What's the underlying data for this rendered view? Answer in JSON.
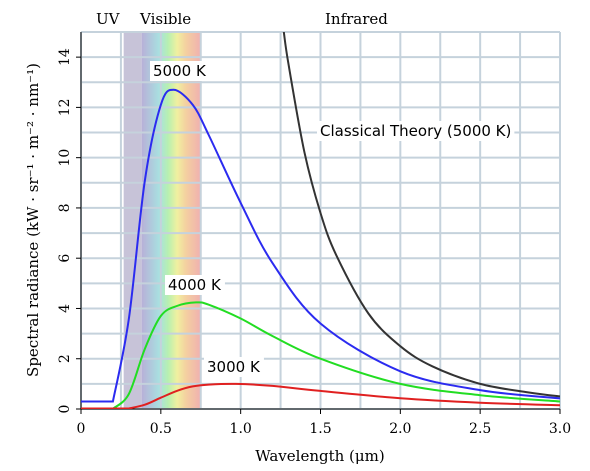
{
  "chart_data": {
    "type": "line",
    "xlabel": "Wavelength (μm)",
    "ylabel": "Spectral radiance (kW · sr⁻¹ · m⁻² · nm⁻¹)",
    "xlim": [
      0,
      3.0
    ],
    "ylim": [
      0,
      15
    ],
    "xticks": [
      "0",
      "0.5",
      "1.0",
      "1.5",
      "2.0",
      "2.5",
      "3.0"
    ],
    "yticks": [
      "0",
      "2",
      "4",
      "6",
      "8",
      "10",
      "12",
      "14"
    ],
    "grid": true,
    "regions": [
      {
        "label": "UV",
        "range": [
          0,
          0.38
        ]
      },
      {
        "label": "Visible",
        "range": [
          0.38,
          0.75
        ]
      },
      {
        "label": "Infrared",
        "range": [
          0.75,
          3.0
        ]
      }
    ],
    "series": [
      {
        "name": "5000 K",
        "temperature_K": 5000,
        "color": "#2b2bf0",
        "x": [
          0.2,
          0.3,
          0.4,
          0.5,
          0.58,
          0.7,
          0.8,
          1.0,
          1.2,
          1.5,
          2.0,
          2.5,
          3.0
        ],
        "y": [
          0.3,
          3.6,
          9.1,
          12.1,
          12.7,
          12.1,
          10.9,
          8.2,
          5.8,
          3.4,
          1.5,
          0.75,
          0.42
        ]
      },
      {
        "name": "4000 K",
        "temperature_K": 4000,
        "color": "#22dd22",
        "x": [
          0.2,
          0.3,
          0.4,
          0.5,
          0.6,
          0.72,
          0.8,
          1.0,
          1.2,
          1.5,
          2.0,
          2.5,
          3.0
        ],
        "y": [
          0.01,
          0.6,
          2.4,
          3.7,
          4.1,
          4.24,
          4.15,
          3.6,
          2.9,
          2.0,
          1.0,
          0.55,
          0.3
        ]
      },
      {
        "name": "3000 K",
        "temperature_K": 3000,
        "color": "#e02020",
        "x": [
          0.3,
          0.4,
          0.5,
          0.6,
          0.7,
          0.8,
          0.97,
          1.2,
          1.5,
          2.0,
          2.5,
          3.0
        ],
        "y": [
          0.02,
          0.17,
          0.45,
          0.72,
          0.9,
          0.97,
          1.0,
          0.92,
          0.72,
          0.43,
          0.25,
          0.15
        ]
      },
      {
        "name": "Classical Theory (5000 K)",
        "temperature_K": 5000,
        "color": "#333333",
        "x": [
          1.27,
          1.3,
          1.4,
          1.5,
          1.6,
          1.8,
          2.0,
          2.2,
          2.5,
          2.8,
          3.0
        ],
        "y": [
          15.0,
          13.7,
          10.2,
          7.8,
          6.1,
          3.8,
          2.5,
          1.7,
          1.0,
          0.66,
          0.5
        ]
      }
    ]
  }
}
